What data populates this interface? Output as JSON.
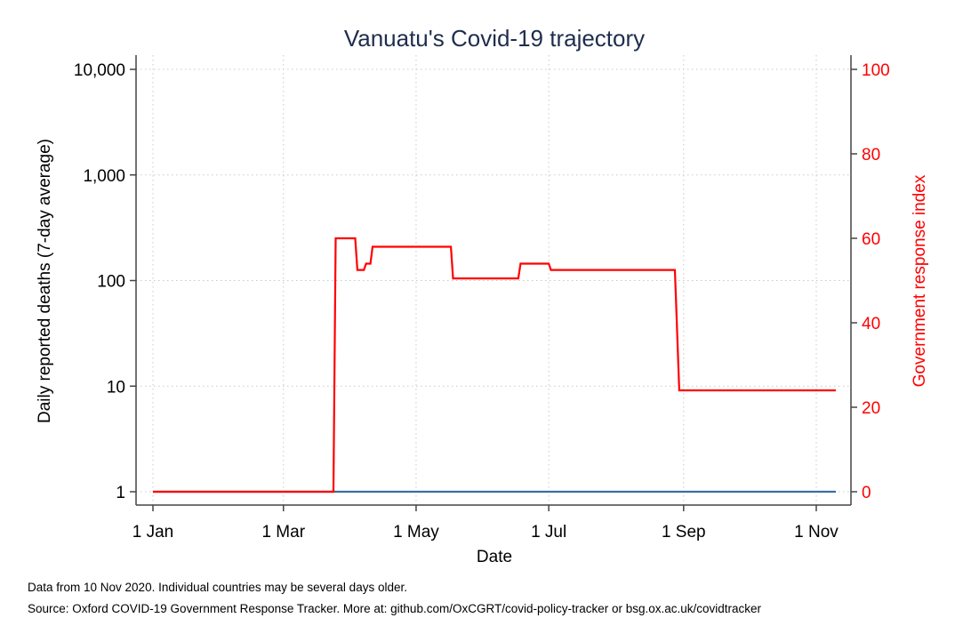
{
  "chart_data": {
    "type": "line",
    "title": "Vanuatu's Covid-19 trajectory",
    "xlabel": "Date",
    "ylabel_left": "Daily reported deaths (7-day average)",
    "ylabel_right": "Government response index",
    "x_range": [
      "2020-01-01",
      "2020-11-10"
    ],
    "x_ticks": [
      {
        "label": "1 Jan",
        "date": "2020-01-01"
      },
      {
        "label": "1 Mar",
        "date": "2020-03-01"
      },
      {
        "label": "1 May",
        "date": "2020-05-01"
      },
      {
        "label": "1 Jul",
        "date": "2020-07-01"
      },
      {
        "label": "1 Sep",
        "date": "2020-09-01"
      },
      {
        "label": "1 Nov",
        "date": "2020-11-01"
      }
    ],
    "y_left": {
      "scale": "log",
      "range": [
        1,
        10000
      ],
      "ticks": [
        {
          "label": "1",
          "value": 1
        },
        {
          "label": "10",
          "value": 10
        },
        {
          "label": "100",
          "value": 100
        },
        {
          "label": "1,000",
          "value": 1000
        },
        {
          "label": "10,000",
          "value": 10000
        }
      ]
    },
    "y_right": {
      "scale": "linear",
      "range": [
        0,
        100
      ],
      "ticks": [
        {
          "label": "0",
          "value": 0
        },
        {
          "label": "20",
          "value": 20
        },
        {
          "label": "40",
          "value": 40
        },
        {
          "label": "60",
          "value": 60
        },
        {
          "label": "80",
          "value": 80
        },
        {
          "label": "100",
          "value": 100
        }
      ]
    },
    "grid": true,
    "series": [
      {
        "axis": "left",
        "color": "#3a6ea5",
        "points": [
          [
            "2020-01-01",
            1
          ],
          [
            "2020-11-10",
            1
          ]
        ]
      },
      {
        "axis": "right",
        "color": "#ff0000",
        "points": [
          [
            "2020-01-01",
            0
          ],
          [
            "2020-03-24",
            0
          ],
          [
            "2020-03-25",
            60
          ],
          [
            "2020-04-03",
            60
          ],
          [
            "2020-04-04",
            52.5
          ],
          [
            "2020-04-07",
            52.5
          ],
          [
            "2020-04-08",
            54
          ],
          [
            "2020-04-10",
            54
          ],
          [
            "2020-04-11",
            58
          ],
          [
            "2020-05-17",
            58
          ],
          [
            "2020-05-18",
            50.5
          ],
          [
            "2020-06-17",
            50.5
          ],
          [
            "2020-06-18",
            54
          ],
          [
            "2020-07-01",
            54
          ],
          [
            "2020-07-02",
            52.5
          ],
          [
            "2020-08-28",
            52.5
          ],
          [
            "2020-08-30",
            24
          ],
          [
            "2020-11-10",
            24
          ]
        ]
      }
    ]
  },
  "notes": {
    "line1": "Data from 10 Nov 2020. Individual countries may be several days older.",
    "line2": "Source: Oxford COVID-19 Government Response Tracker. More at: github.com/OxCGRT/covid-policy-tracker or bsg.ox.ac.uk/covidtracker"
  }
}
